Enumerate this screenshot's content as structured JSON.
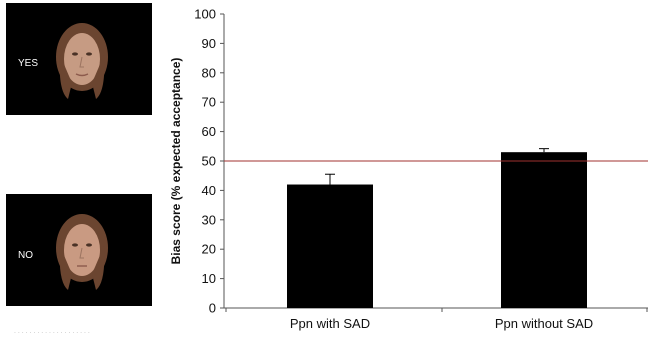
{
  "stimuli": {
    "yes_label": "YES",
    "no_label": "NO"
  },
  "colors": {
    "bar": "#000000",
    "reference_line": "#a0322f",
    "axis": "#555555",
    "panel_bg": "#000000"
  },
  "chart_data": {
    "type": "bar",
    "categories": [
      "Ppn with SAD",
      "Ppn without SAD"
    ],
    "values": [
      42,
      53
    ],
    "errors": [
      3.5,
      1.2
    ],
    "title": "",
    "xlabel": "",
    "ylabel": "Bias score (% expected acceptance)",
    "ylim": [
      0,
      100
    ],
    "yticks": [
      0,
      10,
      20,
      30,
      40,
      50,
      60,
      70,
      80,
      90,
      100
    ],
    "reference_line": 50,
    "grid": false,
    "legend": "none"
  }
}
